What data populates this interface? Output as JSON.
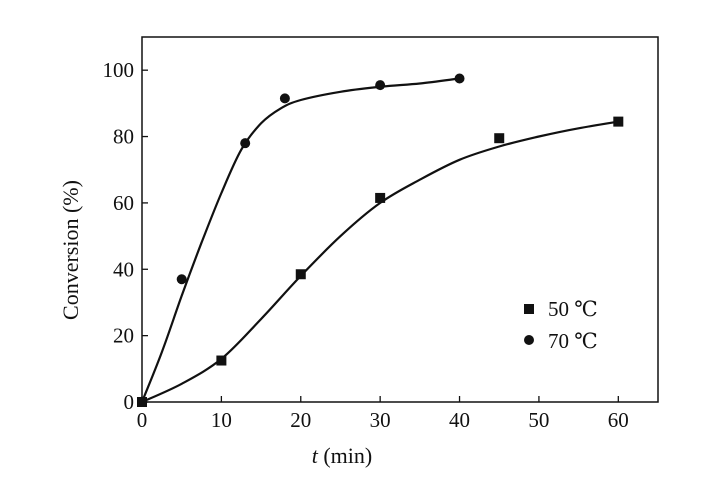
{
  "chart_data": {
    "type": "scatter",
    "title": "",
    "xlabel": "t (min)",
    "xlabel_var": "t",
    "xlabel_unit": "(min)",
    "ylabel": "Conversion (%)",
    "xlim": [
      0,
      65
    ],
    "ylim": [
      0,
      110
    ],
    "x_ticks": [
      0,
      10,
      20,
      30,
      40,
      50,
      60
    ],
    "y_ticks": [
      0,
      20,
      40,
      60,
      80,
      100
    ],
    "grid": false,
    "legend_position": "bottom-right",
    "series": [
      {
        "name": "50 ℃",
        "marker": "square",
        "color": "#111111",
        "x": [
          0,
          10,
          20,
          30,
          45,
          60
        ],
        "y": [
          0,
          12.5,
          38.5,
          61.5,
          79.5,
          84.5
        ],
        "fit_x": [
          0,
          5,
          10,
          15,
          20,
          25,
          30,
          35,
          40,
          45,
          50,
          55,
          60
        ],
        "fit_y": [
          0,
          5.5,
          13,
          25,
          38,
          50,
          60,
          67,
          73,
          77,
          80,
          82.5,
          84.5
        ]
      },
      {
        "name": "70 ℃",
        "marker": "circle",
        "color": "#111111",
        "x": [
          0,
          5,
          13,
          18,
          30,
          40
        ],
        "y": [
          0,
          37,
          78,
          91.5,
          95.5,
          97.5
        ],
        "fit_x": [
          0,
          2.5,
          5,
          7.5,
          10,
          12.5,
          15,
          17.5,
          20,
          25,
          30,
          35,
          40
        ],
        "fit_y": [
          0,
          15,
          32,
          48,
          63,
          76,
          84,
          88.5,
          91,
          93.5,
          95,
          96,
          97.5
        ]
      }
    ]
  }
}
